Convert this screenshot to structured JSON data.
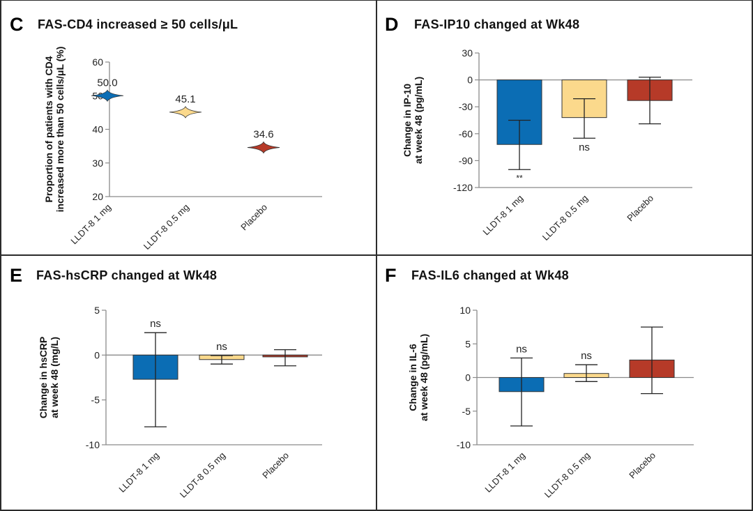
{
  "figure": {
    "colors": {
      "lldt8_1mg": "#0b6db4",
      "lldt8_05mg": "#fbd98c",
      "placebo": "#b63a28",
      "axis": "#8a8a8a",
      "errorbar": "#222222"
    }
  },
  "chart_data": [
    {
      "panel": "C",
      "type": "scatter",
      "marker": "diamond",
      "title": "FAS-CD4 increased ≥ 50 cells/μL",
      "ylabel_line1": "Proportion of patients with CD4",
      "ylabel_line2": "increased more than 50 cells/μL (%)",
      "xlabel": "",
      "categories": [
        "LLDT-8 1 mg",
        "LLDT-8 0.5 mg",
        "Placebo"
      ],
      "values": [
        50.0,
        45.1,
        34.6
      ],
      "data_labels": [
        "50.0",
        "45.1",
        "34.6"
      ],
      "ylim": [
        20,
        60
      ],
      "yticks": [
        20,
        30,
        40,
        50,
        60
      ],
      "ytick_labels": [
        "20",
        "30",
        "40",
        "50",
        "60"
      ],
      "grid": false
    },
    {
      "panel": "D",
      "type": "bar",
      "title": "FAS-IP10 changed at Wk48",
      "ylabel_line1": "Change in IP-10",
      "ylabel_line2": "at week 48 (pg/mL)",
      "xlabel": "",
      "categories": [
        "LLDT-8 1 mg",
        "LLDT-8 0.5 mg",
        "Placebo"
      ],
      "values": [
        -72,
        -42,
        -23
      ],
      "error_low": [
        -100,
        -65,
        -49
      ],
      "error_high": [
        -45,
        -21,
        3
      ],
      "significance": [
        "**",
        "ns",
        ""
      ],
      "significance_position": [
        "below",
        "below",
        ""
      ],
      "ylim": [
        -120,
        30
      ],
      "yticks": [
        -120,
        -90,
        -60,
        -30,
        0,
        30
      ],
      "ytick_labels": [
        "-120",
        "-90",
        "-60",
        "-30",
        "0",
        "30"
      ],
      "grid": false
    },
    {
      "panel": "E",
      "type": "bar",
      "title": "FAS-hsCRP changed at Wk48",
      "ylabel_line1": "Change in hsCRP",
      "ylabel_line2": "at week 48 (mg/L)",
      "xlabel": "",
      "categories": [
        "LLDT-8 1 mg",
        "LLDT-8 0.5 mg",
        "Placebo"
      ],
      "values": [
        -2.7,
        -0.5,
        -0.2
      ],
      "error_low": [
        -8.0,
        -1.0,
        -1.2
      ],
      "error_high": [
        2.5,
        -0.05,
        0.6
      ],
      "significance": [
        "ns",
        "ns",
        ""
      ],
      "significance_position": [
        "above",
        "above",
        ""
      ],
      "ylim": [
        -10,
        5
      ],
      "yticks": [
        -10,
        -5,
        0,
        5
      ],
      "ytick_labels": [
        "-10",
        "-5",
        "0",
        "5"
      ],
      "grid": false
    },
    {
      "panel": "F",
      "type": "bar",
      "title": "FAS-IL6 changed at Wk48",
      "ylabel_line1": "Change in IL-6",
      "ylabel_line2": "at week 48 (pg/mL)",
      "xlabel": "",
      "categories": [
        "LLDT-8 1 mg",
        "LLDT-8 0.5 mg",
        "Placebo"
      ],
      "values": [
        -2.1,
        0.6,
        2.6
      ],
      "error_low": [
        -7.2,
        -0.6,
        -2.4
      ],
      "error_high": [
        2.9,
        1.9,
        7.5
      ],
      "significance": [
        "ns",
        "ns",
        ""
      ],
      "significance_position": [
        "above",
        "above",
        ""
      ],
      "ylim": [
        -10,
        10
      ],
      "yticks": [
        -10,
        -5,
        0,
        5,
        10
      ],
      "ytick_labels": [
        "-10",
        "-5",
        "0",
        "5",
        "10"
      ],
      "grid": false
    }
  ]
}
